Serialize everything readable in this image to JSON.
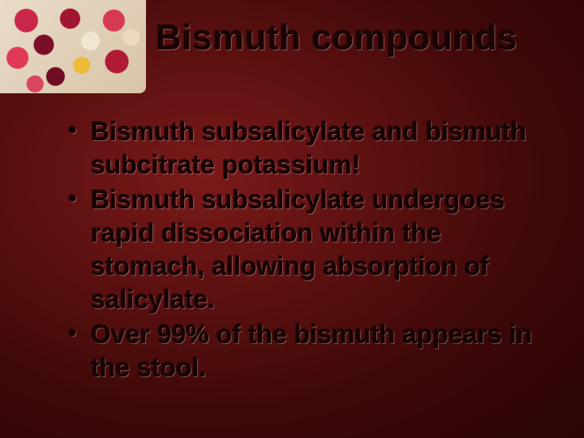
{
  "slide": {
    "title": "Bismuth compounds",
    "bullets": [
      "Bismuth subsalicylate and bismuth subcitrate potassium!",
      "Bismuth subsalicylate undergoes rapid dissociation within the stomach, allowing absorption of salicylate.",
      "Over 99% of the bismuth appears in the stool."
    ],
    "style": {
      "background_gradient": [
        "#7a1a1a",
        "#5a1010",
        "#3d0808",
        "#2a0505"
      ],
      "title_color": "#1a0404",
      "title_fontsize": 44,
      "title_weight": 700,
      "bullet_color": "#170303",
      "bullet_fontsize": 32,
      "bullet_weight": 700,
      "bullet_lineheight": 1.28,
      "font_family": "Arial",
      "corner_image_size": [
        180,
        115
      ]
    }
  }
}
